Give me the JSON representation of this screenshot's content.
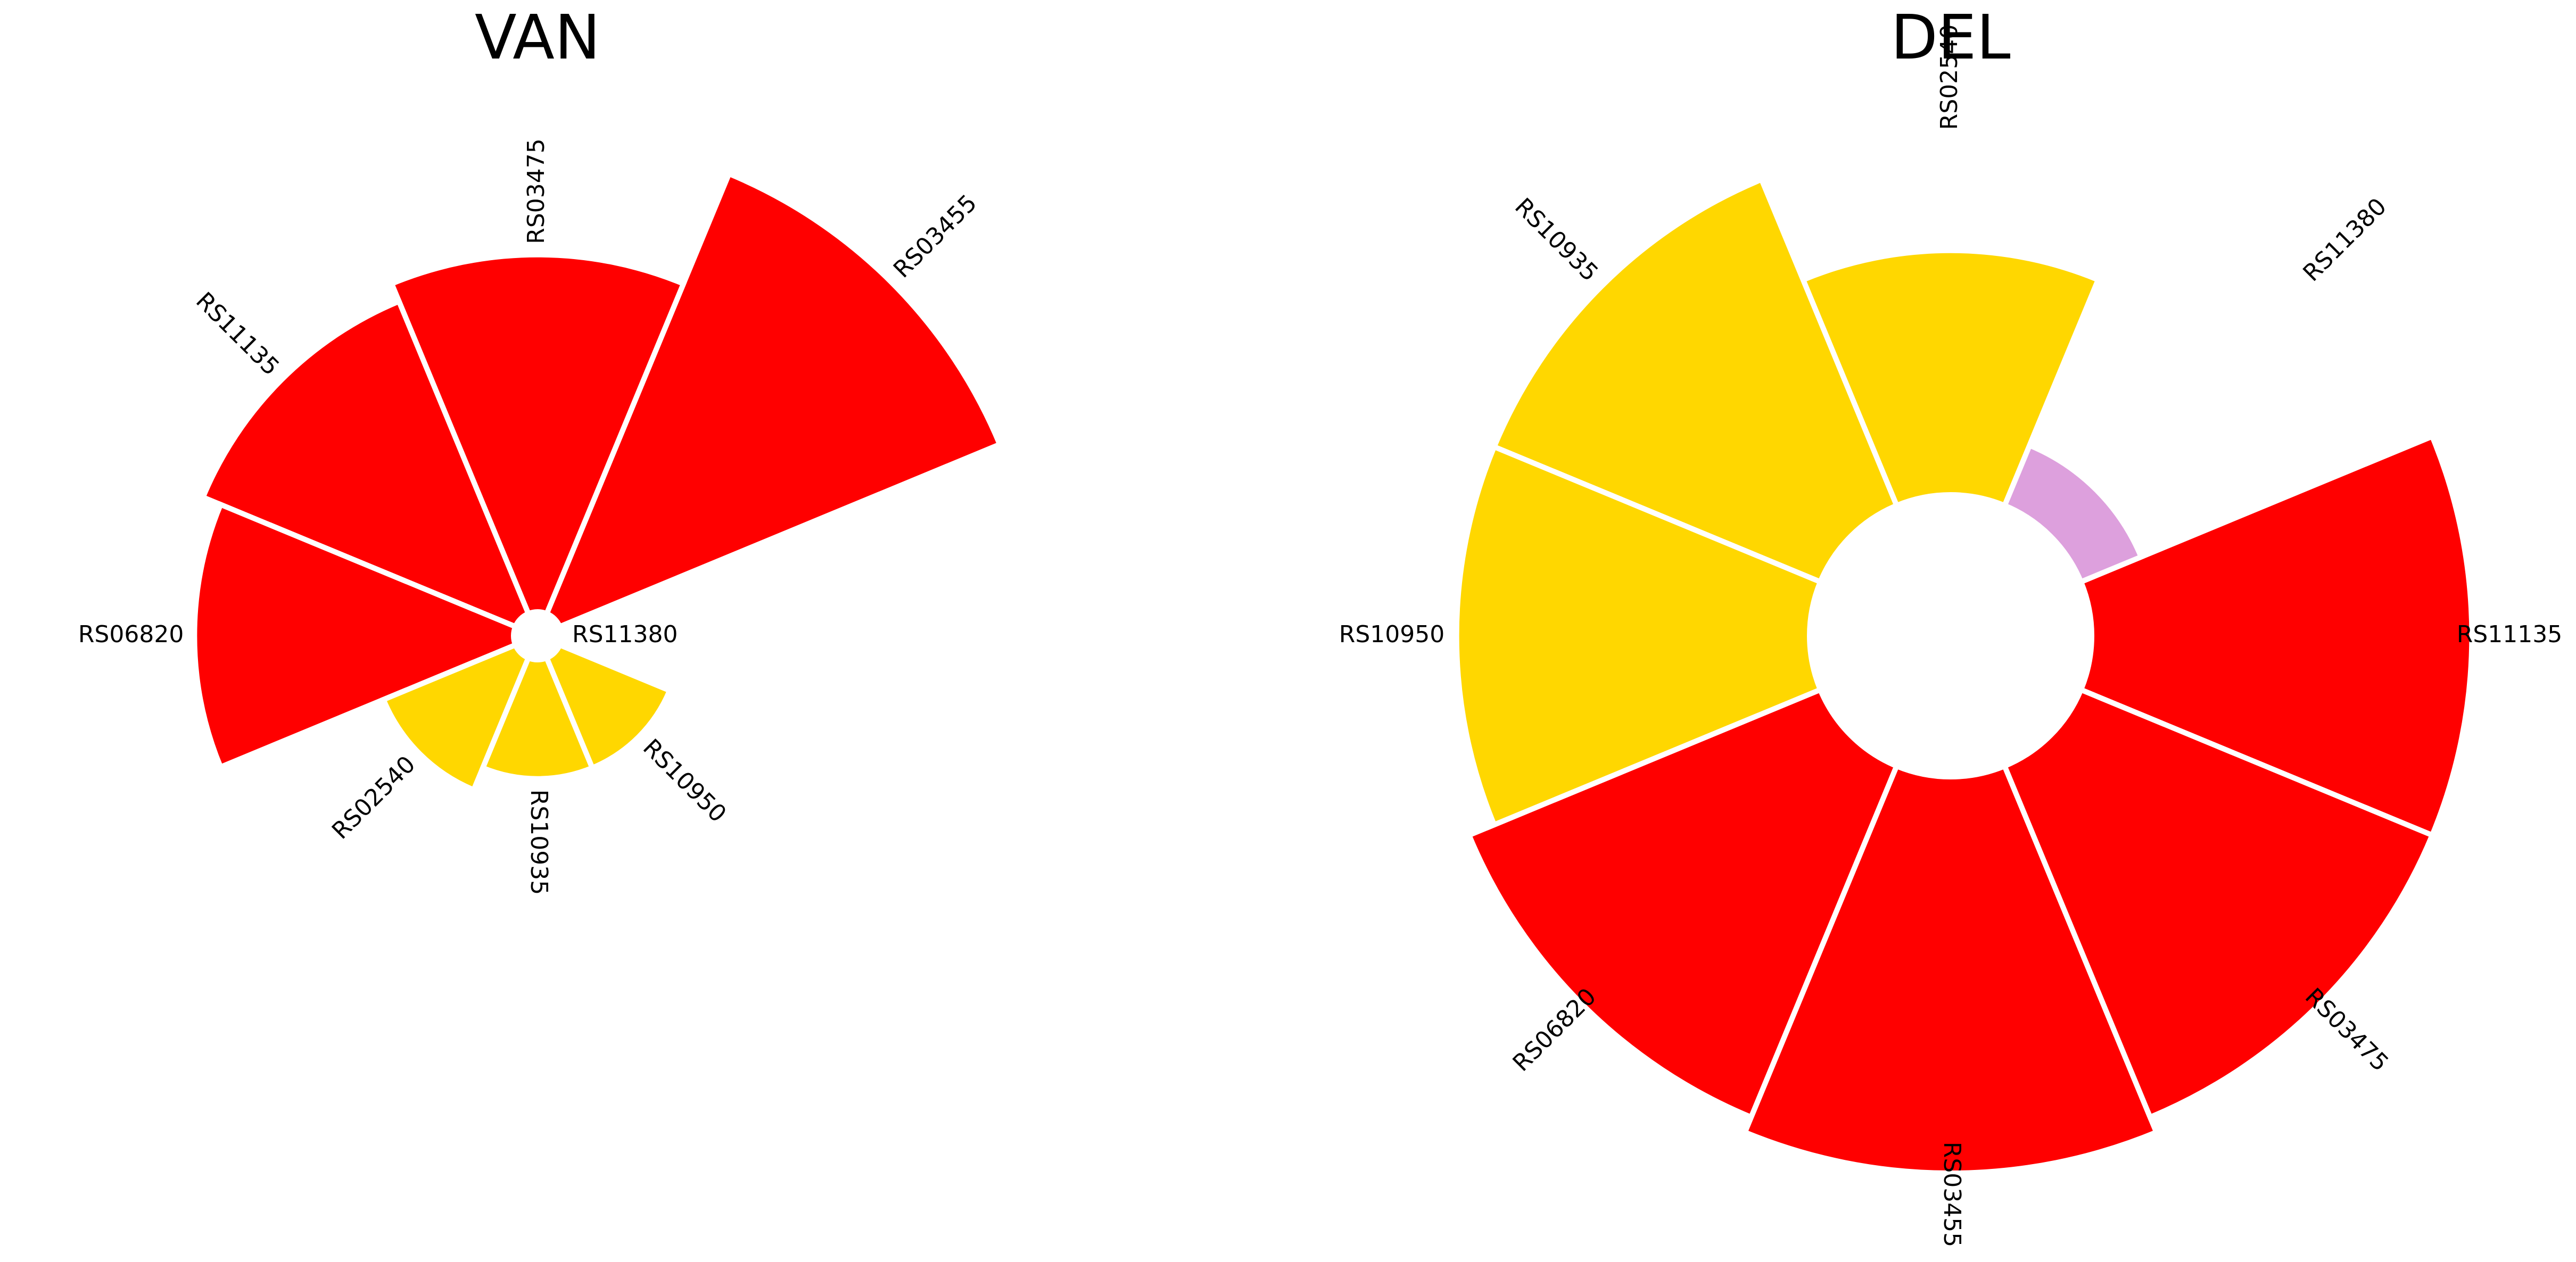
{
  "chart_data": [
    {
      "type": "bar",
      "subtype": "polar",
      "title": "VAN",
      "categories": [
        "RS11380",
        "RS03455",
        "RS03475",
        "RS11135",
        "RS06820",
        "RS02540",
        "RS10935",
        "RS10950"
      ],
      "values": [
        0,
        10,
        7.5,
        7.1,
        6.7,
        3.0,
        2.5,
        2.5
      ],
      "colors": [
        "#ff0000",
        "#ff0000",
        "#ff0000",
        "#ff0000",
        "#ff0000",
        "#ffd700",
        "#ffd700",
        "#ffd700"
      ],
      "ylim": [
        0,
        10
      ]
    },
    {
      "type": "bar",
      "subtype": "polar",
      "title": "DEL",
      "categories": [
        "RS11135",
        "RS11380",
        "RS02540",
        "RS10935",
        "RS10950",
        "RS06820",
        "RS03455",
        "RS03475"
      ],
      "values": [
        7.0,
        1.2,
        4.5,
        6.5,
        6.5,
        7.0,
        7.3,
        7.0
      ],
      "colors": [
        "#ff0000",
        "#dda0dd",
        "#ffd700",
        "#ffd700",
        "#ffd700",
        "#ff0000",
        "#ff0000",
        "#ff0000"
      ],
      "ylim": [
        0,
        7.3
      ]
    }
  ]
}
